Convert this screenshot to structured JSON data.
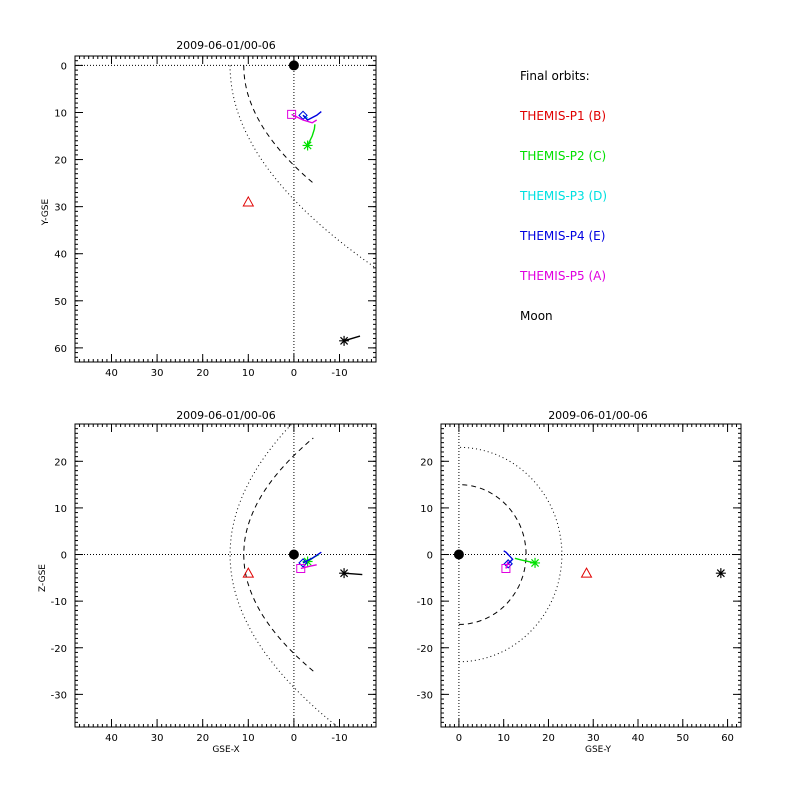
{
  "colors": {
    "P1": "#e00000",
    "P2": "#00e000",
    "P3": "#00e0e0",
    "P4": "#0000e0",
    "P5": "#e000e0",
    "Moon": "#000000",
    "Earth": "#000000",
    "background": "#ffffff"
  },
  "legend": {
    "title": "Final orbits:",
    "items": [
      {
        "label": "THEMIS-P1 (B)",
        "color": "#e00000"
      },
      {
        "label": "THEMIS-P2 (C)",
        "color": "#00e000"
      },
      {
        "label": "THEMIS-P3 (D)",
        "color": "#00e0e0"
      },
      {
        "label": "THEMIS-P4 (E)",
        "color": "#0000e0"
      },
      {
        "label": "THEMIS-P5 (A)",
        "color": "#e000e0"
      },
      {
        "label": "Moon",
        "color": "#000000"
      }
    ]
  },
  "chart_data": [
    {
      "type": "scatter",
      "title": "2009-06-01/00-06",
      "xlabel": "",
      "ylabel": "Y-GSE",
      "xlim": [
        48,
        -18
      ],
      "ylim": [
        -2,
        63
      ],
      "y_inverted": true,
      "xticks": [
        40,
        30,
        20,
        10,
        0,
        -10
      ],
      "yticks": [
        0,
        10,
        20,
        30,
        40,
        50,
        60
      ],
      "grid": false,
      "points": [
        {
          "name": "Earth",
          "symbol": "disk",
          "x": 0,
          "y": 0
        },
        {
          "name": "THEMIS-P1 (B)",
          "symbol": "triangle",
          "x": 10,
          "y": 29
        },
        {
          "name": "THEMIS-P2 (C)",
          "symbol": "asterisk",
          "x": -3,
          "y": 17,
          "track": [
            [
              -3,
              17
            ],
            [
              -4,
              15
            ],
            [
              -4.5,
              13.5
            ],
            [
              -4.6,
              12.5
            ]
          ]
        },
        {
          "name": "THEMIS-P3 (D)",
          "symbol": "diamond",
          "x": -2,
          "y": 10.6,
          "track": [
            [
              -2,
              10.6
            ],
            [
              -3,
              11.2
            ]
          ]
        },
        {
          "name": "THEMIS-P4 (E)",
          "symbol": "diamond",
          "x": -2,
          "y": 10.6,
          "track": [
            [
              -2,
              10.6
            ],
            [
              -3,
              11.6
            ],
            [
              -5,
              10.6
            ],
            [
              -6,
              9.8
            ]
          ]
        },
        {
          "name": "THEMIS-P5 (A)",
          "symbol": "square",
          "x": 0.5,
          "y": 10.4,
          "track": [
            [
              0.5,
              10.4
            ],
            [
              -2,
              11.6
            ],
            [
              -4,
              12.2
            ],
            [
              -5,
              11.6
            ]
          ]
        },
        {
          "name": "Moon",
          "symbol": "asterisk",
          "x": -11,
          "y": 58.5,
          "track": [
            [
              -11,
              58.5
            ],
            [
              -14.5,
              57.5
            ]
          ]
        }
      ],
      "reference_lines": {
        "x": 0,
        "y": 0
      }
    },
    {
      "type": "scatter",
      "title": "2009-06-01/00-06",
      "xlabel": "GSE-X",
      "ylabel": "Z-GSE",
      "xlim": [
        48,
        -18
      ],
      "ylim": [
        -37,
        28
      ],
      "xticks": [
        40,
        30,
        20,
        10,
        0,
        -10
      ],
      "yticks": [
        20,
        10,
        0,
        -10,
        -20,
        -30
      ],
      "grid": false,
      "points": [
        {
          "name": "Earth",
          "symbol": "disk",
          "x": 0,
          "y": 0
        },
        {
          "name": "THEMIS-P1 (B)",
          "symbol": "triangle",
          "x": 10,
          "y": -4
        },
        {
          "name": "THEMIS-P2 (C)",
          "symbol": "asterisk",
          "x": -3,
          "y": -1.5,
          "track": [
            [
              -3,
              -1.5
            ],
            [
              -4.5,
              -0.5
            ],
            [
              -5.5,
              0
            ]
          ]
        },
        {
          "name": "THEMIS-P3 (D)",
          "symbol": "diamond",
          "x": -2,
          "y": -1.8,
          "track": [
            [
              -2,
              -1.8
            ],
            [
              -3.5,
              -1
            ]
          ]
        },
        {
          "name": "THEMIS-P4 (E)",
          "symbol": "diamond",
          "x": -2,
          "y": -1.8,
          "track": [
            [
              -2,
              -1.8
            ],
            [
              -4,
              -0.8
            ],
            [
              -6,
              0.5
            ]
          ]
        },
        {
          "name": "THEMIS-P5 (A)",
          "symbol": "square",
          "x": -1.5,
          "y": -3,
          "track": [
            [
              -1.5,
              -3
            ],
            [
              -3.5,
              -2.5
            ],
            [
              -5,
              -2.2
            ]
          ]
        },
        {
          "name": "Moon",
          "symbol": "asterisk",
          "x": -11,
          "y": -4,
          "track": [
            [
              -11,
              -4
            ],
            [
              -15,
              -4.3
            ]
          ]
        }
      ],
      "reference_lines": {
        "x": 0,
        "y": 0
      }
    },
    {
      "type": "scatter",
      "title": "2009-06-01/00-06",
      "xlabel": "GSE-Y",
      "ylabel": "",
      "xlim": [
        -4,
        63
      ],
      "ylim": [
        -37,
        28
      ],
      "xticks": [
        0,
        10,
        20,
        30,
        40,
        50,
        60
      ],
      "yticks": [
        20,
        10,
        0,
        -10,
        -20,
        -30
      ],
      "grid": false,
      "points": [
        {
          "name": "Earth",
          "symbol": "disk",
          "x": 0,
          "y": 0
        },
        {
          "name": "THEMIS-P1 (B)",
          "symbol": "triangle",
          "x": 28.5,
          "y": -4
        },
        {
          "name": "THEMIS-P2 (C)",
          "symbol": "asterisk",
          "x": 17,
          "y": -1.8,
          "track": [
            [
              17,
              -1.8
            ],
            [
              14,
              -1.2
            ],
            [
              12.5,
              -0.8
            ]
          ]
        },
        {
          "name": "THEMIS-P3 (D)",
          "symbol": "diamond",
          "x": 11,
          "y": -2,
          "track": [
            [
              11,
              -2
            ],
            [
              11.8,
              -1.2
            ]
          ]
        },
        {
          "name": "THEMIS-P4 (E)",
          "symbol": "diamond",
          "x": 11,
          "y": -2,
          "track": [
            [
              11,
              -2
            ],
            [
              12,
              -1
            ],
            [
              10.5,
              0.5
            ],
            [
              10,
              0.8
            ]
          ]
        },
        {
          "name": "THEMIS-P5 (A)",
          "symbol": "square",
          "x": 10.5,
          "y": -3,
          "track": [
            [
              10.5,
              -3
            ],
            [
              11,
              -1.5
            ]
          ]
        },
        {
          "name": "Moon",
          "symbol": "asterisk",
          "x": 58.5,
          "y": -4
        }
      ],
      "reference_lines": {
        "x": 0,
        "y": 0
      }
    }
  ]
}
